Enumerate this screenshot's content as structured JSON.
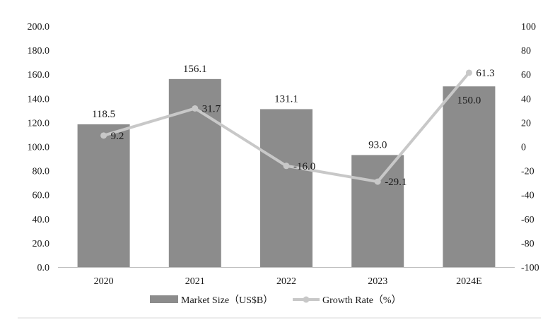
{
  "chart_data": {
    "type": "bar",
    "categories": [
      "2020",
      "2021",
      "2022",
      "2023",
      "2024E"
    ],
    "series": [
      {
        "name": "Market Size（US$B）",
        "type": "bar",
        "axis": "left",
        "values": [
          118.5,
          156.1,
          131.1,
          93.0,
          150.0
        ],
        "labels": [
          "118.5",
          "156.1",
          "131.1",
          "93.0",
          "150.0"
        ],
        "color": "#8c8c8c"
      },
      {
        "name": "Growth Rate（%）",
        "type": "line",
        "axis": "right",
        "values": [
          9.2,
          31.7,
          -16.0,
          -29.1,
          61.3
        ],
        "labels": [
          "9.2",
          "31.7",
          "-16.0",
          "-29.1",
          "61.3"
        ],
        "color": "#c8c8c8"
      }
    ],
    "y_left": {
      "min": 0,
      "max": 200,
      "step": 20,
      "ticks": [
        "0.0",
        "20.0",
        "40.0",
        "60.0",
        "80.0",
        "100.0",
        "120.0",
        "140.0",
        "160.0",
        "180.0",
        "200.0"
      ]
    },
    "y_right": {
      "min": -100,
      "max": 100,
      "step": 20,
      "ticks": [
        "-100",
        "-80",
        "-60",
        "-40",
        "-20",
        "0",
        "20",
        "40",
        "60",
        "80",
        "100"
      ]
    },
    "grid": false,
    "legend_position": "bottom-center"
  }
}
